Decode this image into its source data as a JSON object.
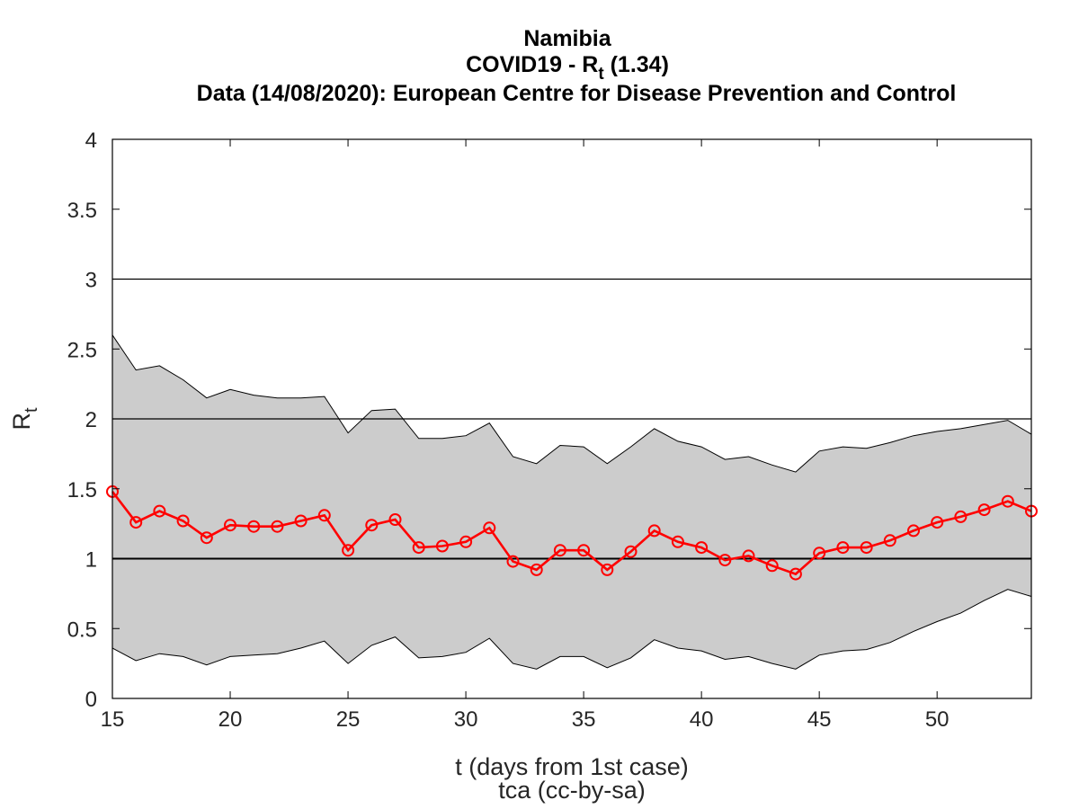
{
  "chart_data": {
    "type": "line",
    "title": {
      "line1": "Namibia",
      "line2_main": "COVID19 - R",
      "line2_sub": "t",
      "line2_value": " (1.34)",
      "line3": "Data (14/08/2020): European Centre for Disease Prevention and Control"
    },
    "xlabel": "t (days from 1st case)",
    "credit": "tca (cc-by-sa)",
    "ylabel_main": "R",
    "ylabel_sub": "t",
    "xlim": [
      15,
      54
    ],
    "ylim": [
      0,
      4
    ],
    "xticks": [
      15,
      20,
      25,
      30,
      35,
      40,
      45,
      50
    ],
    "yticks": [
      0,
      0.5,
      1,
      1.5,
      2,
      2.5,
      3,
      3.5,
      4
    ],
    "ytick_labels": [
      "0",
      "0.5",
      "1",
      "1.5",
      "2",
      "2.5",
      "3",
      "3.5",
      "4"
    ],
    "reference_lines": [
      1,
      2,
      3
    ],
    "grid": false,
    "colors": {
      "series": "#ff0000",
      "band": "#cccccc",
      "reference": "#000000"
    },
    "x": [
      15,
      16,
      17,
      18,
      19,
      20,
      21,
      22,
      23,
      24,
      25,
      26,
      27,
      28,
      29,
      30,
      31,
      32,
      33,
      34,
      35,
      36,
      37,
      38,
      39,
      40,
      41,
      42,
      43,
      44,
      45,
      46,
      47,
      48,
      49,
      50,
      51,
      52,
      53,
      54
    ],
    "series": [
      {
        "values": [
          1.48,
          1.26,
          1.34,
          1.27,
          1.15,
          1.24,
          1.23,
          1.23,
          1.27,
          1.31,
          1.06,
          1.24,
          1.28,
          1.08,
          1.09,
          1.12,
          1.22,
          0.98,
          0.92,
          1.06,
          1.06,
          0.92,
          1.05,
          1.2,
          1.12,
          1.08,
          0.99,
          1.02,
          0.95,
          0.89,
          1.04,
          1.08,
          1.08,
          1.13,
          1.2,
          1.26,
          1.3,
          1.35,
          1.41,
          1.34
        ]
      }
    ],
    "band": {
      "upper": [
        2.6,
        2.35,
        2.38,
        2.28,
        2.15,
        2.21,
        2.17,
        2.15,
        2.15,
        2.16,
        1.9,
        2.06,
        2.07,
        1.86,
        1.86,
        1.88,
        1.97,
        1.73,
        1.68,
        1.81,
        1.8,
        1.68,
        1.8,
        1.93,
        1.84,
        1.8,
        1.71,
        1.73,
        1.67,
        1.62,
        1.77,
        1.8,
        1.79,
        1.83,
        1.88,
        1.91,
        1.93,
        1.96,
        1.99,
        1.89
      ],
      "lower": [
        0.36,
        0.27,
        0.32,
        0.3,
        0.24,
        0.3,
        0.31,
        0.32,
        0.36,
        0.41,
        0.25,
        0.38,
        0.44,
        0.29,
        0.3,
        0.33,
        0.43,
        0.25,
        0.21,
        0.3,
        0.3,
        0.22,
        0.29,
        0.42,
        0.36,
        0.34,
        0.28,
        0.3,
        0.25,
        0.21,
        0.31,
        0.34,
        0.35,
        0.4,
        0.48,
        0.55,
        0.61,
        0.7,
        0.78,
        0.73
      ]
    }
  }
}
